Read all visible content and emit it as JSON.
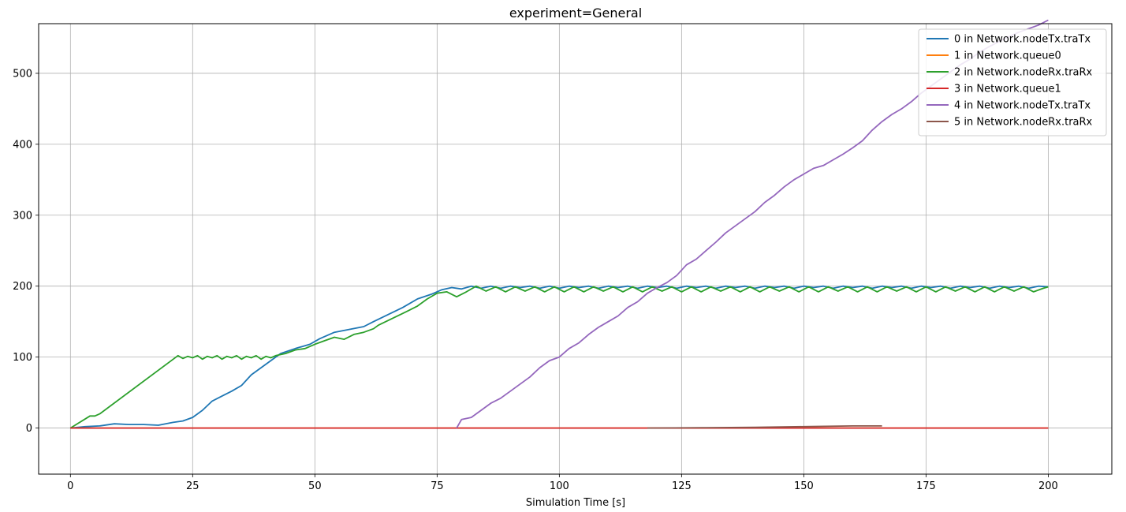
{
  "chart_data": {
    "type": "line",
    "title": "experiment=General",
    "xlabel": "Simulation Time [s]",
    "ylabel": "",
    "xlim": [
      -6.5,
      213
    ],
    "ylim": [
      -65,
      570
    ],
    "xticks": [
      0,
      25,
      50,
      75,
      100,
      125,
      150,
      175,
      200
    ],
    "yticks": [
      0,
      100,
      200,
      300,
      400,
      500
    ],
    "grid": true,
    "legend_position": "top-right",
    "series": [
      {
        "name": "0 in Network.nodeTx.traTx",
        "color": "#1f77b4",
        "points": [
          [
            0,
            0
          ],
          [
            3,
            2
          ],
          [
            6,
            3
          ],
          [
            9,
            6
          ],
          [
            12,
            5
          ],
          [
            15,
            5
          ],
          [
            18,
            4
          ],
          [
            21,
            8
          ],
          [
            23,
            10
          ],
          [
            25,
            15
          ],
          [
            27,
            25
          ],
          [
            29,
            38
          ],
          [
            31,
            45
          ],
          [
            33,
            52
          ],
          [
            35,
            60
          ],
          [
            37,
            75
          ],
          [
            39,
            85
          ],
          [
            41,
            95
          ],
          [
            43,
            105
          ],
          [
            46,
            112
          ],
          [
            49,
            118
          ],
          [
            51,
            126
          ],
          [
            54,
            135
          ],
          [
            57,
            139
          ],
          [
            60,
            143
          ],
          [
            62,
            150
          ],
          [
            65,
            160
          ],
          [
            68,
            170
          ],
          [
            71,
            182
          ],
          [
            74,
            189
          ],
          [
            76,
            195
          ],
          [
            78,
            198
          ],
          [
            80,
            196
          ],
          [
            82,
            200
          ],
          [
            84,
            197
          ],
          [
            86,
            200
          ],
          [
            88,
            197
          ],
          [
            90,
            200
          ],
          [
            92,
            198
          ],
          [
            94,
            200
          ],
          [
            96,
            197
          ],
          [
            98,
            200
          ],
          [
            100,
            197
          ],
          [
            102,
            200
          ],
          [
            104,
            198
          ],
          [
            106,
            200
          ],
          [
            108,
            197
          ],
          [
            110,
            200
          ],
          [
            112,
            198
          ],
          [
            114,
            200
          ],
          [
            116,
            197
          ],
          [
            118,
            200
          ],
          [
            120,
            198
          ],
          [
            122,
            200
          ],
          [
            124,
            197
          ],
          [
            126,
            200
          ],
          [
            128,
            198
          ],
          [
            130,
            200
          ],
          [
            132,
            197
          ],
          [
            134,
            200
          ],
          [
            136,
            198
          ],
          [
            138,
            200
          ],
          [
            140,
            197
          ],
          [
            142,
            200
          ],
          [
            144,
            198
          ],
          [
            146,
            200
          ],
          [
            148,
            197
          ],
          [
            150,
            200
          ],
          [
            152,
            198
          ],
          [
            154,
            200
          ],
          [
            156,
            197
          ],
          [
            158,
            200
          ],
          [
            160,
            198
          ],
          [
            162,
            200
          ],
          [
            164,
            197
          ],
          [
            166,
            200
          ],
          [
            168,
            198
          ],
          [
            170,
            200
          ],
          [
            172,
            197
          ],
          [
            174,
            200
          ],
          [
            176,
            198
          ],
          [
            178,
            200
          ],
          [
            180,
            197
          ],
          [
            182,
            200
          ],
          [
            184,
            198
          ],
          [
            186,
            200
          ],
          [
            188,
            197
          ],
          [
            190,
            200
          ],
          [
            192,
            198
          ],
          [
            194,
            200
          ],
          [
            196,
            197
          ],
          [
            198,
            200
          ],
          [
            200,
            199
          ]
        ]
      },
      {
        "name": "1 in Network.queue0",
        "color": "#ff7f0e",
        "points": [
          [
            0,
            0
          ],
          [
            200,
            0
          ]
        ]
      },
      {
        "name": "2 in Network.nodeRx.traRx",
        "color": "#2ca02c",
        "points": [
          [
            0,
            0
          ],
          [
            4,
            17
          ],
          [
            5,
            17
          ],
          [
            6,
            20
          ],
          [
            22,
            102
          ],
          [
            23,
            98
          ],
          [
            24,
            101
          ],
          [
            25,
            99
          ],
          [
            26,
            102
          ],
          [
            27,
            97
          ],
          [
            28,
            101
          ],
          [
            29,
            99
          ],
          [
            30,
            102
          ],
          [
            31,
            97
          ],
          [
            32,
            101
          ],
          [
            33,
            99
          ],
          [
            34,
            102
          ],
          [
            35,
            97
          ],
          [
            36,
            101
          ],
          [
            37,
            99
          ],
          [
            38,
            102
          ],
          [
            39,
            97
          ],
          [
            40,
            101
          ],
          [
            41,
            99
          ],
          [
            42,
            102
          ],
          [
            44,
            105
          ],
          [
            46,
            110
          ],
          [
            48,
            112
          ],
          [
            50,
            118
          ],
          [
            52,
            123
          ],
          [
            54,
            128
          ],
          [
            56,
            125
          ],
          [
            58,
            132
          ],
          [
            60,
            135
          ],
          [
            62,
            140
          ],
          [
            63,
            145
          ],
          [
            66,
            155
          ],
          [
            69,
            165
          ],
          [
            71,
            172
          ],
          [
            73,
            182
          ],
          [
            75,
            190
          ],
          [
            77,
            192
          ],
          [
            79,
            185
          ],
          [
            81,
            192
          ],
          [
            83,
            200
          ],
          [
            85,
            193
          ],
          [
            87,
            199
          ],
          [
            89,
            192
          ],
          [
            91,
            199
          ],
          [
            93,
            193
          ],
          [
            95,
            199
          ],
          [
            97,
            192
          ],
          [
            99,
            199
          ],
          [
            101,
            192
          ],
          [
            103,
            199
          ],
          [
            105,
            192
          ],
          [
            107,
            199
          ],
          [
            109,
            193
          ],
          [
            111,
            199
          ],
          [
            113,
            192
          ],
          [
            115,
            199
          ],
          [
            117,
            192
          ],
          [
            119,
            199
          ],
          [
            121,
            193
          ],
          [
            123,
            199
          ],
          [
            125,
            192
          ],
          [
            127,
            199
          ],
          [
            129,
            192
          ],
          [
            131,
            199
          ],
          [
            133,
            193
          ],
          [
            135,
            199
          ],
          [
            137,
            192
          ],
          [
            139,
            199
          ],
          [
            141,
            192
          ],
          [
            143,
            199
          ],
          [
            145,
            193
          ],
          [
            147,
            199
          ],
          [
            149,
            192
          ],
          [
            151,
            199
          ],
          [
            153,
            192
          ],
          [
            155,
            199
          ],
          [
            157,
            193
          ],
          [
            159,
            199
          ],
          [
            161,
            192
          ],
          [
            163,
            199
          ],
          [
            165,
            192
          ],
          [
            167,
            199
          ],
          [
            169,
            193
          ],
          [
            171,
            199
          ],
          [
            173,
            192
          ],
          [
            175,
            199
          ],
          [
            177,
            192
          ],
          [
            179,
            199
          ],
          [
            181,
            193
          ],
          [
            183,
            199
          ],
          [
            185,
            192
          ],
          [
            187,
            199
          ],
          [
            189,
            192
          ],
          [
            191,
            199
          ],
          [
            193,
            193
          ],
          [
            195,
            199
          ],
          [
            197,
            192
          ],
          [
            199,
            197
          ],
          [
            200,
            199
          ]
        ]
      },
      {
        "name": "3 in Network.queue1",
        "color": "#d62728",
        "points": [
          [
            0,
            0
          ],
          [
            200,
            0
          ]
        ]
      },
      {
        "name": "4 in Network.nodeTx.traTx",
        "color": "#9467bd",
        "points": [
          [
            79,
            0
          ],
          [
            80,
            12
          ],
          [
            82,
            15
          ],
          [
            84,
            25
          ],
          [
            86,
            35
          ],
          [
            88,
            42
          ],
          [
            90,
            52
          ],
          [
            92,
            62
          ],
          [
            94,
            72
          ],
          [
            96,
            85
          ],
          [
            98,
            95
          ],
          [
            100,
            100
          ],
          [
            102,
            112
          ],
          [
            104,
            120
          ],
          [
            106,
            132
          ],
          [
            108,
            142
          ],
          [
            110,
            150
          ],
          [
            112,
            158
          ],
          [
            114,
            170
          ],
          [
            116,
            178
          ],
          [
            118,
            190
          ],
          [
            120,
            198
          ],
          [
            122,
            205
          ],
          [
            124,
            215
          ],
          [
            126,
            230
          ],
          [
            128,
            238
          ],
          [
            130,
            250
          ],
          [
            132,
            262
          ],
          [
            134,
            275
          ],
          [
            136,
            285
          ],
          [
            138,
            295
          ],
          [
            140,
            305
          ],
          [
            142,
            318
          ],
          [
            144,
            328
          ],
          [
            146,
            340
          ],
          [
            148,
            350
          ],
          [
            150,
            358
          ],
          [
            152,
            366
          ],
          [
            154,
            370
          ],
          [
            156,
            378
          ],
          [
            158,
            386
          ],
          [
            160,
            395
          ],
          [
            162,
            405
          ],
          [
            164,
            420
          ],
          [
            166,
            432
          ],
          [
            168,
            442
          ],
          [
            170,
            450
          ],
          [
            172,
            460
          ],
          [
            174,
            472
          ],
          [
            176,
            482
          ],
          [
            178,
            492
          ],
          [
            180,
            502
          ],
          [
            182,
            512
          ],
          [
            184,
            520
          ],
          [
            186,
            530
          ],
          [
            188,
            538
          ],
          [
            190,
            545
          ],
          [
            192,
            552
          ],
          [
            194,
            558
          ],
          [
            196,
            563
          ],
          [
            198,
            568
          ],
          [
            200,
            575
          ]
        ]
      },
      {
        "name": "5 in Network.nodeRx.traRx",
        "color": "#8c564b",
        "points": [
          [
            118,
            0
          ],
          [
            130,
            0.5
          ],
          [
            140,
            1
          ],
          [
            150,
            2
          ],
          [
            160,
            3
          ],
          [
            166,
            3
          ]
        ]
      }
    ]
  }
}
